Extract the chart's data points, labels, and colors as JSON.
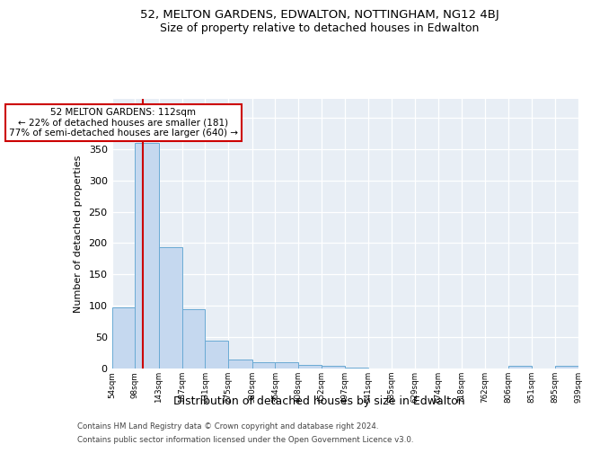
{
  "title1": "52, MELTON GARDENS, EDWALTON, NOTTINGHAM, NG12 4BJ",
  "title2": "Size of property relative to detached houses in Edwalton",
  "xlabel": "Distribution of detached houses by size in Edwalton",
  "ylabel": "Number of detached properties",
  "footer1": "Contains HM Land Registry data © Crown copyright and database right 2024.",
  "footer2": "Contains public sector information licensed under the Open Government Licence v3.0.",
  "annotation_line1": "52 MELTON GARDENS: 112sqm",
  "annotation_line2": "← 22% of detached houses are smaller (181)",
  "annotation_line3": "77% of semi-detached houses are larger (640) →",
  "bar_edges": [
    54,
    98,
    143,
    187,
    231,
    275,
    320,
    364,
    408,
    452,
    497,
    541,
    585,
    629,
    674,
    718,
    762,
    806,
    851,
    895,
    939
  ],
  "bar_heights": [
    97,
    360,
    193,
    95,
    45,
    15,
    10,
    10,
    6,
    5,
    1,
    0,
    0,
    0,
    0,
    0,
    0,
    4,
    0,
    4
  ],
  "bar_color": "#c5d8ef",
  "bar_edge_color": "#6aaad4",
  "property_size": 112,
  "red_line_color": "#cc0000",
  "annotation_box_color": "#cc0000",
  "background_color": "#e8eef5",
  "ylim": [
    0,
    430
  ],
  "yticks": [
    0,
    50,
    100,
    150,
    200,
    250,
    300,
    350,
    400,
    450
  ]
}
